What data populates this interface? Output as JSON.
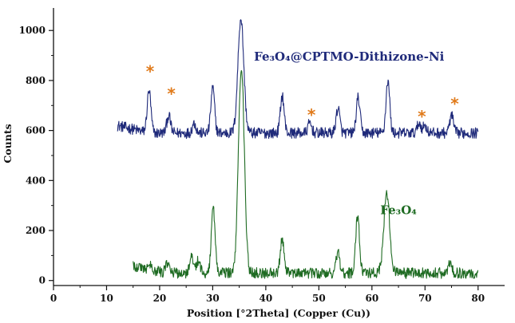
{
  "chart_data": {
    "type": "line",
    "title": "",
    "xlabel": "Position [°2Theta] (Copper (Cu))",
    "ylabel": "Counts",
    "xlim": [
      0,
      85
    ],
    "ylim": [
      -20,
      1090
    ],
    "xticks": [
      0,
      10,
      20,
      30,
      40,
      50,
      60,
      70,
      80
    ],
    "yticks": [
      0,
      200,
      400,
      600,
      800,
      1000
    ],
    "tick_labels_x": [
      "0",
      "10",
      "20",
      "30",
      "40",
      "50",
      "60",
      "70",
      "80"
    ],
    "tick_labels_y": [
      "0",
      "200",
      "400",
      "600",
      "800",
      "1000"
    ],
    "grid": false,
    "series": [
      {
        "name": "Fe₃O₄@CPTMO-Dithizone-Ni",
        "color": "#1f2a7a",
        "x_range": [
          12,
          80
        ],
        "baseline": 590,
        "peaks": [
          [
            18.0,
            170
          ],
          [
            21.7,
            70
          ],
          [
            26.5,
            40
          ],
          [
            30.0,
            180
          ],
          [
            35.3,
            460
          ],
          [
            43.1,
            150
          ],
          [
            48.3,
            40
          ],
          [
            53.6,
            100
          ],
          [
            57.4,
            140
          ],
          [
            63.0,
            210
          ],
          [
            68.9,
            40
          ],
          [
            70.0,
            30
          ],
          [
            75.0,
            70
          ]
        ]
      },
      {
        "name": "Fe₃O₄",
        "color": "#1e6b22",
        "x_range": [
          15,
          80
        ],
        "baseline": 30,
        "peaks": [
          [
            18.3,
            20
          ],
          [
            21.5,
            40
          ],
          [
            26.0,
            60
          ],
          [
            27.3,
            50
          ],
          [
            30.1,
            260
          ],
          [
            35.4,
            830
          ],
          [
            43.1,
            140
          ],
          [
            53.6,
            80
          ],
          [
            57.3,
            230
          ],
          [
            62.8,
            320
          ],
          [
            74.7,
            40
          ]
        ]
      }
    ],
    "annotations": [
      {
        "text": "*",
        "x": 18.2,
        "y": 840
      },
      {
        "text": "*",
        "x": 22.2,
        "y": 750
      },
      {
        "text": "*",
        "x": 48.6,
        "y": 665
      },
      {
        "text": "*",
        "x": 69.4,
        "y": 660
      },
      {
        "text": "*",
        "x": 75.6,
        "y": 710
      }
    ],
    "series_labels": [
      {
        "text": "Fe₃O₄@CPTMO-Dithizone-Ni",
        "x": 55.7,
        "y": 880,
        "series": 0
      },
      {
        "text": "Fe₃O₄",
        "x": 65.0,
        "y": 265,
        "series": 1
      }
    ]
  }
}
